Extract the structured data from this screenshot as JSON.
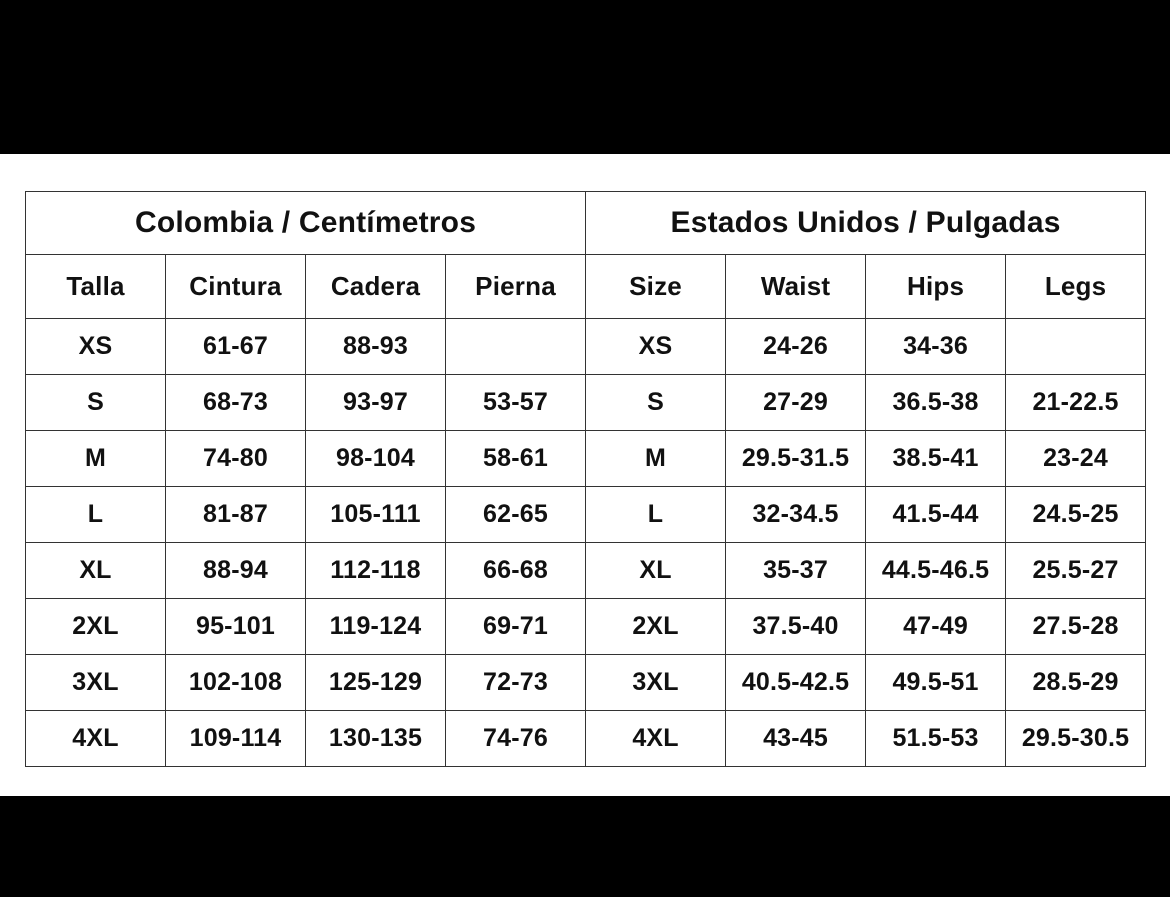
{
  "regions": [
    "Colombia / Centímetros",
    "Estados Unidos / Pulgadas"
  ],
  "columns": {
    "colombia": [
      "Talla",
      "Cintura",
      "Cadera",
      "Pierna"
    ],
    "usa": [
      "Size",
      "Waist",
      "Hips",
      "Legs"
    ]
  },
  "rows": [
    {
      "size_co": "XS",
      "cintura": "61-67",
      "cadera": "88-93",
      "pierna": "",
      "size_us": "XS",
      "waist": "24-26",
      "hips": "34-36",
      "legs": ""
    },
    {
      "size_co": "S",
      "cintura": "68-73",
      "cadera": "93-97",
      "pierna": "53-57",
      "size_us": "S",
      "waist": "27-29",
      "hips": "36.5-38",
      "legs": "21-22.5"
    },
    {
      "size_co": "M",
      "cintura": "74-80",
      "cadera": "98-104",
      "pierna": "58-61",
      "size_us": "M",
      "waist": "29.5-31.5",
      "hips": "38.5-41",
      "legs": "23-24"
    },
    {
      "size_co": "L",
      "cintura": "81-87",
      "cadera": "105-111",
      "pierna": "62-65",
      "size_us": "L",
      "waist": "32-34.5",
      "hips": "41.5-44",
      "legs": "24.5-25"
    },
    {
      "size_co": "XL",
      "cintura": "88-94",
      "cadera": "112-118",
      "pierna": "66-68",
      "size_us": "XL",
      "waist": "35-37",
      "hips": "44.5-46.5",
      "legs": "25.5-27"
    },
    {
      "size_co": "2XL",
      "cintura": "95-101",
      "cadera": "119-124",
      "pierna": "69-71",
      "size_us": "2XL",
      "waist": "37.5-40",
      "hips": "47-49",
      "legs": "27.5-28"
    },
    {
      "size_co": "3XL",
      "cintura": "102-108",
      "cadera": "125-129",
      "pierna": "72-73",
      "size_us": "3XL",
      "waist": "40.5-42.5",
      "hips": "49.5-51",
      "legs": "28.5-29"
    },
    {
      "size_co": "4XL",
      "cintura": "109-114",
      "cadera": "130-135",
      "pierna": "74-76",
      "size_us": "4XL",
      "waist": "43-45",
      "hips": "51.5-53",
      "legs": "29.5-30.5"
    }
  ]
}
